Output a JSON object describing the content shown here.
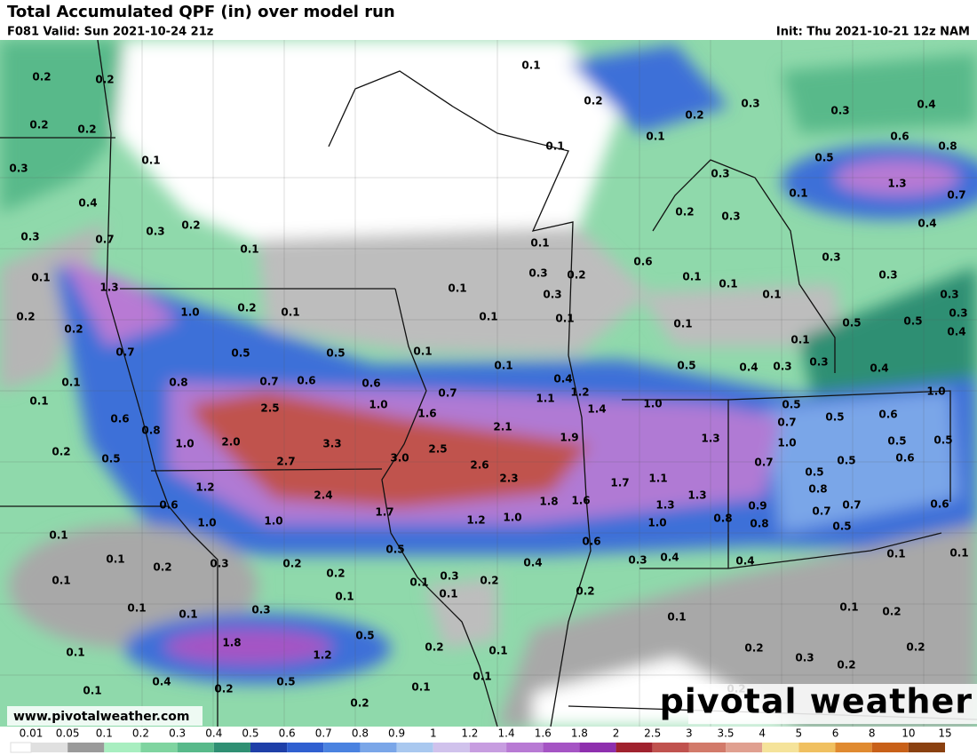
{
  "header": {
    "title": "Total Accumulated QPF (in) over model run",
    "valid": "F081 Valid: Sun 2021-10-24 21z",
    "init": "Init: Thu 2021-10-21 12z NAM"
  },
  "map": {
    "labels": [
      "0.2",
      "0.2",
      "0.2",
      "0.2",
      "0.3",
      "0.1",
      "0.4",
      "0.3",
      "0.7",
      "0.3",
      "0.2",
      "0.1",
      "0.1",
      "1.3",
      "1.0",
      "0.2",
      "0.1",
      "0.2",
      "0.2",
      "0.7",
      "0.5",
      "0.5",
      "0.1",
      "0.1",
      "0.8",
      "0.7",
      "0.6",
      "0.6",
      "0.1",
      "0.6",
      "0.8",
      "2.5",
      "1.0",
      "1.6",
      "0.7",
      "1.0",
      "2.0",
      "3.3",
      "2.7",
      "3.0",
      "2.5",
      "2.1",
      "2.6",
      "2.3",
      "1.9",
      "0.2",
      "0.5",
      "1.2",
      "2.4",
      "0.6",
      "1.0",
      "1.0",
      "1.7",
      "1.2",
      "1.0",
      "1.8",
      "1.6",
      "1.7",
      "1.1",
      "1.3",
      "1.3",
      "1.0",
      "0.8",
      "0.9",
      "0.8",
      "0.1",
      "0.1",
      "0.2",
      "0.3",
      "0.2",
      "0.5",
      "0.1",
      "0.2",
      "0.1",
      "0.1",
      "0.3",
      "0.2",
      "0.1",
      "0.4",
      "0.6",
      "0.1",
      "0.1",
      "0.3",
      "0.2",
      "0.3",
      "0.4",
      "0.4",
      "1.8",
      "1.2",
      "0.5",
      "0.2",
      "0.1",
      "0.1",
      "0.1",
      "0.4",
      "0.2",
      "0.5",
      "0.1",
      "0.1",
      "0.1",
      "0.2",
      "0.2",
      "0.1",
      "0.2",
      "0.2",
      "0.3",
      "0.3",
      "0.4",
      "0.1",
      "0.1",
      "0.6",
      "0.5",
      "0.8",
      "0.3",
      "1.3",
      "0.1",
      "0.7",
      "0.2",
      "0.3",
      "0.4",
      "0.1",
      "0.6",
      "0.3",
      "0.2",
      "0.1",
      "0.3",
      "0.1",
      "0.1",
      "0.1",
      "0.3",
      "0.3",
      "0.3",
      "0.3",
      "0.4",
      "0.1",
      "0.1",
      "0.1",
      "0.5",
      "0.5",
      "0.1",
      "0.3",
      "0.4",
      "0.1",
      "0.4",
      "0.5",
      "0.4",
      "0.3",
      "1.1",
      "1.2",
      "1.4",
      "1.0",
      "1.0",
      "0.5",
      "0.7",
      "0.5",
      "0.6",
      "1.3",
      "1.0",
      "0.5",
      "0.5",
      "0.7",
      "0.5",
      "0.5",
      "0.6",
      "0.8",
      "0.7",
      "0.7",
      "0.5",
      "0.6",
      "0.1",
      "0.1",
      "0.1",
      "0.2",
      "0.2",
      "0.3",
      "0.2",
      "0.2"
    ],
    "website": "www.pivotalweather.com",
    "watermark": "pivotal weather"
  },
  "legend": {
    "labels": [
      "0.01",
      "0.05",
      "0.1",
      "0.2",
      "0.3",
      "0.4",
      "0.5",
      "0.6",
      "0.7",
      "0.8",
      "0.9",
      "1",
      "1.2",
      "1.4",
      "1.6",
      "1.8",
      "2",
      "2.5",
      "3",
      "3.5",
      "4",
      "5",
      "6",
      "8",
      "10",
      "15"
    ],
    "colors": [
      "#e0e0e0",
      "#9a9a9a",
      "#a8eec0",
      "#7fd4a0",
      "#58b98a",
      "#2f8f73",
      "#1e3fa8",
      "#2f5fd0",
      "#4a82e0",
      "#7aa6e8",
      "#a9c8ef",
      "#d0c2ec",
      "#c79de0",
      "#b87ad4",
      "#a554c4",
      "#8e2fae",
      "#a0222e",
      "#c0524e",
      "#d27a6a",
      "#e0a090",
      "#f5e39a",
      "#f0c060",
      "#e08a30",
      "#c86018",
      "#8a4010"
    ]
  }
}
